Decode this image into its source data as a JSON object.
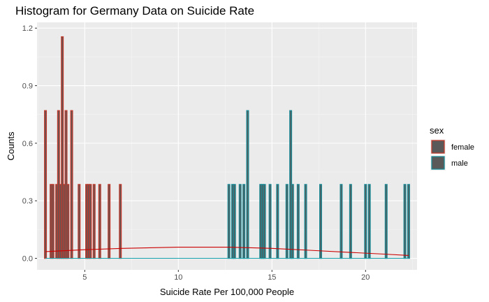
{
  "chart_data": {
    "type": "histogram",
    "title": "Histogram for Germany Data on Suicide Rate",
    "xlabel": "Suicide Rate Per 100,000 People",
    "ylabel": "Counts",
    "xlim": [
      2.45,
      22.75
    ],
    "ylim": [
      -0.06,
      1.23
    ],
    "x_ticks": [
      5,
      10,
      15,
      20
    ],
    "x_tick_labels": [
      "5",
      "10",
      "15",
      "20"
    ],
    "y_ticks": [
      0,
      0.3,
      0.6,
      0.9,
      1.2
    ],
    "y_tick_labels": [
      "0.0",
      "0.3",
      "0.6",
      "0.9",
      "1.2"
    ],
    "grid": true,
    "legend_position": "right",
    "legend_title": "sex",
    "bin_width": 0.1,
    "series": [
      {
        "name": "female",
        "outline_color": "#c0392b",
        "fill_color": "#595959",
        "bins": [
          {
            "x": 2.9,
            "count": 0.77
          },
          {
            "x": 3.2,
            "count": 0.385
          },
          {
            "x": 3.3,
            "count": 0.385
          },
          {
            "x": 3.5,
            "count": 0.385
          },
          {
            "x": 3.6,
            "count": 0.77
          },
          {
            "x": 3.7,
            "count": 0.385
          },
          {
            "x": 3.8,
            "count": 1.155
          },
          {
            "x": 3.9,
            "count": 0.385
          },
          {
            "x": 4.0,
            "count": 0.77
          },
          {
            "x": 4.1,
            "count": 0.385
          },
          {
            "x": 4.3,
            "count": 0.77
          },
          {
            "x": 4.7,
            "count": 0.385
          },
          {
            "x": 5.1,
            "count": 0.385
          },
          {
            "x": 5.2,
            "count": 0.385
          },
          {
            "x": 5.3,
            "count": 0.385
          },
          {
            "x": 5.5,
            "count": 0.385
          },
          {
            "x": 5.8,
            "count": 0.385
          },
          {
            "x": 6.3,
            "count": 0.385
          },
          {
            "x": 6.9,
            "count": 0.385
          }
        ],
        "density": [
          {
            "x": 2.9,
            "y": 0.035
          },
          {
            "x": 5,
            "y": 0.045
          },
          {
            "x": 7,
            "y": 0.052
          },
          {
            "x": 10,
            "y": 0.058
          },
          {
            "x": 12.7,
            "y": 0.058
          },
          {
            "x": 15,
            "y": 0.052
          },
          {
            "x": 17,
            "y": 0.042
          },
          {
            "x": 19,
            "y": 0.032
          },
          {
            "x": 21,
            "y": 0.022
          },
          {
            "x": 22.3,
            "y": 0.015
          }
        ]
      },
      {
        "name": "male",
        "outline_color": "#1a8a96",
        "fill_color": "#595959",
        "bins": [
          {
            "x": 12.7,
            "count": 0.385
          },
          {
            "x": 12.9,
            "count": 0.385
          },
          {
            "x": 13.0,
            "count": 0.385
          },
          {
            "x": 13.3,
            "count": 0.385
          },
          {
            "x": 13.5,
            "count": 0.385
          },
          {
            "x": 13.7,
            "count": 0.77
          },
          {
            "x": 14.4,
            "count": 0.385
          },
          {
            "x": 14.5,
            "count": 0.385
          },
          {
            "x": 14.6,
            "count": 0.385
          },
          {
            "x": 14.9,
            "count": 0.385
          },
          {
            "x": 15.3,
            "count": 0.385
          },
          {
            "x": 15.8,
            "count": 0.385
          },
          {
            "x": 16.0,
            "count": 0.77
          },
          {
            "x": 16.1,
            "count": 0.385
          },
          {
            "x": 16.4,
            "count": 0.385
          },
          {
            "x": 16.8,
            "count": 0.385
          },
          {
            "x": 17.6,
            "count": 0.385
          },
          {
            "x": 18.7,
            "count": 0.385
          },
          {
            "x": 19.2,
            "count": 0.385
          },
          {
            "x": 20.0,
            "count": 0.385
          },
          {
            "x": 20.2,
            "count": 0.385
          },
          {
            "x": 21.1,
            "count": 0.385
          },
          {
            "x": 22.1,
            "count": 0.385
          },
          {
            "x": 22.3,
            "count": 0.385
          }
        ],
        "density": [
          {
            "x": 2.9,
            "y": 0.0
          },
          {
            "x": 22.3,
            "y": 0.0
          }
        ]
      }
    ]
  }
}
